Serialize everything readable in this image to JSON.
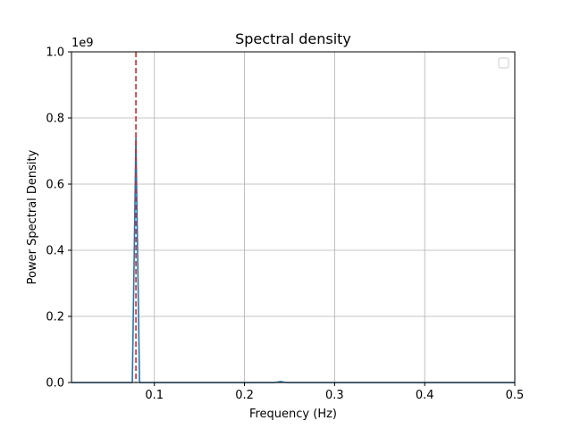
{
  "chart_data": {
    "type": "line",
    "title": "Spectral density",
    "xlabel": "Frequency (Hz)",
    "ylabel": "Power Spectral Density",
    "y_offset_label": "1e9",
    "xlim": [
      0.008,
      0.5
    ],
    "ylim": [
      0,
      1.0
    ],
    "x_ticks": [
      0.1,
      0.2,
      0.3,
      0.4,
      0.5
    ],
    "x_tick_labels": [
      "0.1",
      "0.2",
      "0.3",
      "0.4",
      "0.5"
    ],
    "y_ticks": [
      0.0,
      0.2,
      0.4,
      0.6,
      0.8,
      1.0
    ],
    "y_tick_labels": [
      "0.0",
      "0.2",
      "0.4",
      "0.6",
      "0.8",
      "1.0"
    ],
    "y_units_multiplier": 1000000000,
    "grid": true,
    "legend": {
      "placement": "top-right",
      "entries": []
    },
    "series": [
      {
        "color": "#1f77b4",
        "x": [
          0.008,
          0.016,
          0.024,
          0.032,
          0.04,
          0.048,
          0.056,
          0.064,
          0.072,
          0.0755,
          0.0795,
          0.0835,
          0.088,
          0.096,
          0.104,
          0.112,
          0.12,
          0.2,
          0.232,
          0.236,
          0.24,
          0.244,
          0.248,
          0.3,
          0.4,
          0.5
        ],
        "values": [
          0,
          0,
          0,
          0,
          0,
          0,
          0,
          0,
          0,
          0,
          0.74,
          0,
          0,
          0,
          0,
          0,
          0,
          0,
          0,
          0.001,
          0.003,
          0.001,
          0,
          0,
          0,
          0
        ]
      }
    ],
    "reference_lines": [
      {
        "orientation": "vertical",
        "x": 0.0795,
        "color": "#d62728",
        "style": "dashed"
      }
    ]
  }
}
